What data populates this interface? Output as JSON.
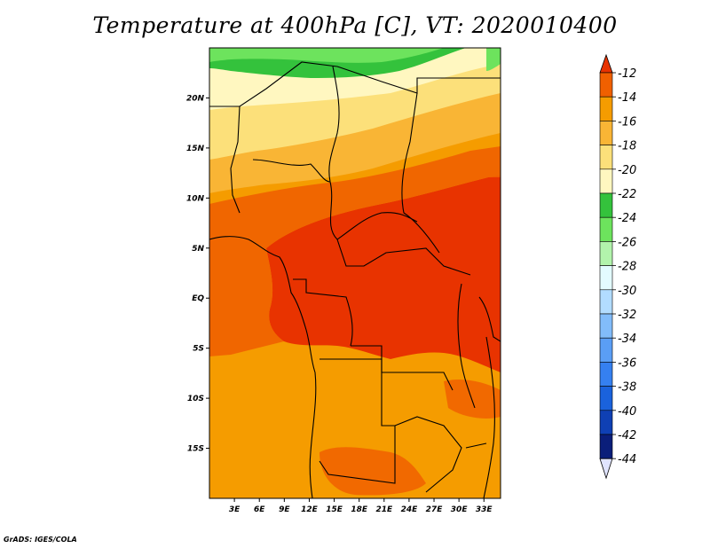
{
  "title": "Temperature at 400hPa [C], VT: 2020010400",
  "footer": "GrADS: IGES/COLA",
  "map": {
    "lon_range": [
      0,
      35
    ],
    "lat_range": [
      -20,
      25
    ],
    "xticks": [
      "3E",
      "6E",
      "9E",
      "12E",
      "15E",
      "18E",
      "21E",
      "24E",
      "27E",
      "30E",
      "33E"
    ],
    "yticks": [
      "20N",
      "15N",
      "10N",
      "5N",
      "EQ",
      "5S",
      "10S",
      "15S"
    ]
  },
  "colorbar": {
    "labels": [
      "-12",
      "-14",
      "-16",
      "-18",
      "-20",
      "-22",
      "-24",
      "-26",
      "-28",
      "-30",
      "-32",
      "-34",
      "-36",
      "-38",
      "-40",
      "-42",
      "-44"
    ],
    "colors": [
      "#e83300",
      "#f06000",
      "#f59c00",
      "#f9b535",
      "#fce07a",
      "#fff7c0",
      "#34c23c",
      "#6de35d",
      "#b2f3ac",
      "#e3fbff",
      "#b2dcff",
      "#82bcfa",
      "#5a9ef5",
      "#3580f0",
      "#1a62dc",
      "#0f40b4",
      "#0a1e7a"
    ],
    "top_arrow_color": "#e83300",
    "bottom_arrow_color": "#e0e4ff"
  }
}
